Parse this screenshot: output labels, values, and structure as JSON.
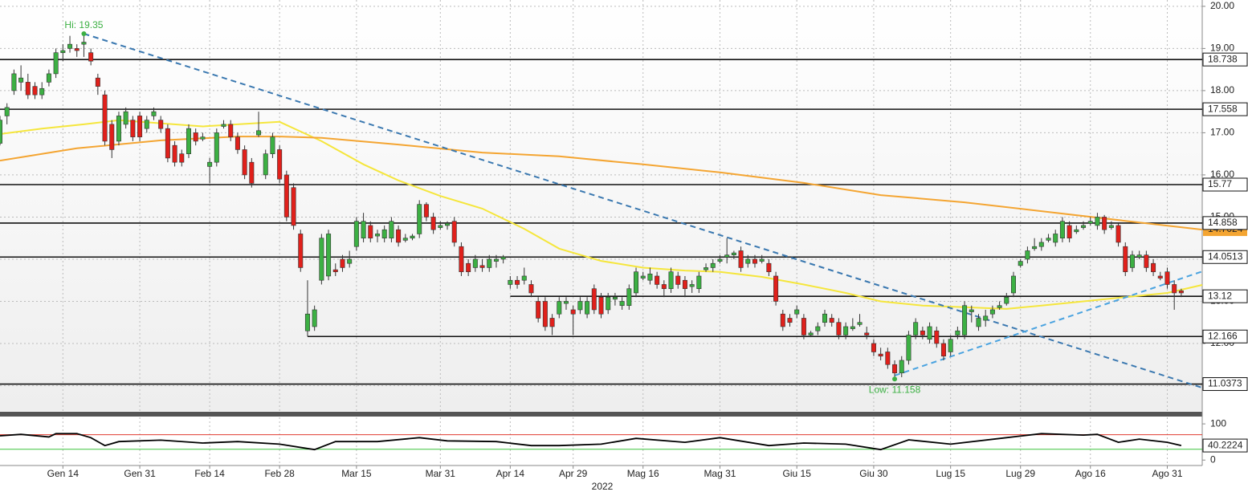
{
  "chart_data": {
    "type": "candlestick",
    "xlim": [
      0,
      172
    ],
    "xticks": [
      {
        "value": 9,
        "label": "Gen 14"
      },
      {
        "value": 20,
        "label": "Gen 31"
      },
      {
        "value": 30,
        "label": "Feb 14"
      },
      {
        "value": 40,
        "label": "Feb 28"
      },
      {
        "value": 51,
        "label": "Mar 15"
      },
      {
        "value": 63,
        "label": "Mar 31"
      },
      {
        "value": 73,
        "label": "Apr 14"
      },
      {
        "value": 82,
        "label": "Apr 29"
      },
      {
        "value": 92,
        "label": "Mag 16"
      },
      {
        "value": 103,
        "label": "Mag 31"
      },
      {
        "value": 114,
        "label": "Giu 15"
      },
      {
        "value": 125,
        "label": "Giu 30"
      },
      {
        "value": 136,
        "label": "Lug 15"
      },
      {
        "value": 146,
        "label": "Lug 29"
      },
      {
        "value": 156,
        "label": "Ago 16"
      },
      {
        "value": 167,
        "label": "Ago 31"
      }
    ],
    "x_axis_year": "2022",
    "ylim": [
      10.4,
      20.15
    ],
    "yticks": [
      {
        "value": 11,
        "label": "11.00"
      },
      {
        "value": 12,
        "label": "12.00"
      },
      {
        "value": 13,
        "label": "13.00"
      },
      {
        "value": 14,
        "label": "14.00"
      },
      {
        "value": 15,
        "label": "15.00"
      },
      {
        "value": 16,
        "label": "16.00"
      },
      {
        "value": 17,
        "label": "17.00"
      },
      {
        "value": 18,
        "label": "18.00"
      },
      {
        "value": 19,
        "label": "19.00"
      },
      {
        "value": 20,
        "label": "20.00"
      }
    ],
    "grid": true,
    "up_color": "#3cb043",
    "down_color": "#e0201b",
    "ohlc": [
      [
        16.75,
        17.4,
        16.7,
        17.3
      ],
      [
        17.4,
        17.7,
        17.2,
        17.6
      ],
      [
        18.0,
        18.5,
        17.9,
        18.4
      ],
      [
        18.2,
        18.6,
        18.0,
        18.3
      ],
      [
        18.2,
        18.4,
        17.8,
        17.9
      ],
      [
        18.1,
        18.2,
        17.8,
        17.9
      ],
      [
        17.9,
        18.2,
        17.8,
        18.05
      ],
      [
        18.2,
        18.5,
        18.1,
        18.4
      ],
      [
        18.4,
        19.0,
        18.3,
        18.9
      ],
      [
        18.9,
        19.1,
        18.7,
        18.95
      ],
      [
        19.0,
        19.3,
        18.9,
        19.1
      ],
      [
        19.0,
        19.1,
        18.8,
        18.95
      ],
      [
        19.1,
        19.35,
        18.8,
        19.15
      ],
      [
        18.9,
        19.0,
        18.6,
        18.7
      ],
      [
        18.3,
        18.4,
        17.9,
        18.1
      ],
      [
        17.9,
        18.0,
        16.7,
        16.8
      ],
      [
        17.2,
        17.3,
        16.4,
        16.6
      ],
      [
        16.8,
        17.5,
        16.7,
        17.4
      ],
      [
        17.2,
        17.6,
        17.1,
        17.5
      ],
      [
        17.3,
        17.4,
        16.8,
        16.9
      ],
      [
        17.4,
        17.5,
        16.8,
        16.9
      ],
      [
        17.1,
        17.4,
        17.0,
        17.3
      ],
      [
        17.4,
        17.6,
        17.3,
        17.5
      ],
      [
        17.3,
        17.4,
        17.0,
        17.1
      ],
      [
        17.1,
        17.2,
        16.3,
        16.4
      ],
      [
        16.7,
        16.8,
        16.2,
        16.3
      ],
      [
        16.5,
        16.6,
        16.2,
        16.3
      ],
      [
        16.5,
        17.2,
        16.4,
        17.1
      ],
      [
        17.0,
        17.1,
        16.7,
        16.8
      ],
      [
        16.85,
        17.0,
        16.8,
        16.9
      ],
      [
        16.2,
        16.4,
        15.8,
        16.3
      ],
      [
        16.3,
        17.1,
        16.2,
        17.0
      ],
      [
        17.15,
        17.3,
        17.1,
        17.2
      ],
      [
        17.2,
        17.3,
        16.8,
        16.9
      ],
      [
        16.9,
        17.0,
        16.5,
        16.6
      ],
      [
        16.6,
        16.7,
        15.9,
        16.0
      ],
      [
        16.3,
        16.4,
        15.7,
        15.8
      ],
      [
        16.95,
        17.5,
        16.9,
        17.05
      ],
      [
        16.0,
        16.6,
        15.9,
        16.5
      ],
      [
        16.5,
        17.0,
        16.4,
        16.9
      ],
      [
        16.6,
        16.7,
        15.8,
        15.9
      ],
      [
        16.0,
        16.1,
        14.9,
        15.0
      ],
      [
        15.7,
        15.8,
        14.7,
        14.8
      ],
      [
        14.6,
        14.7,
        13.7,
        13.8
      ],
      [
        12.3,
        13.5,
        12.17,
        12.7
      ],
      [
        12.4,
        12.9,
        12.3,
        12.8
      ],
      [
        13.5,
        14.6,
        13.4,
        14.5
      ],
      [
        13.6,
        14.7,
        13.5,
        14.6
      ],
      [
        13.75,
        13.9,
        13.6,
        13.7
      ],
      [
        14.0,
        14.1,
        13.7,
        13.8
      ],
      [
        13.9,
        14.2,
        13.8,
        14.0
      ],
      [
        14.3,
        15.0,
        14.2,
        14.9
      ],
      [
        14.5,
        15.1,
        14.4,
        14.9
      ],
      [
        14.8,
        14.9,
        14.4,
        14.5
      ],
      [
        14.55,
        14.7,
        14.4,
        14.6
      ],
      [
        14.5,
        14.8,
        14.4,
        14.7
      ],
      [
        14.5,
        15.0,
        14.4,
        14.9
      ],
      [
        14.7,
        14.8,
        14.3,
        14.4
      ],
      [
        14.45,
        14.6,
        14.4,
        14.5
      ],
      [
        14.5,
        14.6,
        14.45,
        14.55
      ],
      [
        14.6,
        15.4,
        14.5,
        15.3
      ],
      [
        15.3,
        15.35,
        14.9,
        15.0
      ],
      [
        15.0,
        15.1,
        14.6,
        14.7
      ],
      [
        14.75,
        14.9,
        14.7,
        14.8
      ],
      [
        14.8,
        14.9,
        14.7,
        14.85
      ],
      [
        14.9,
        15.0,
        14.3,
        14.4
      ],
      [
        14.3,
        14.4,
        13.6,
        13.7
      ],
      [
        13.9,
        14.0,
        13.6,
        13.7
      ],
      [
        13.8,
        14.1,
        13.7,
        14.0
      ],
      [
        13.85,
        14.0,
        13.7,
        13.8
      ],
      [
        13.8,
        14.1,
        13.7,
        14.0
      ],
      [
        13.95,
        14.1,
        13.8,
        14.0
      ],
      [
        14.0,
        14.1,
        13.9,
        14.05
      ],
      [
        13.4,
        13.6,
        13.3,
        13.5
      ],
      [
        13.5,
        13.6,
        13.3,
        13.4
      ],
      [
        13.5,
        13.8,
        13.4,
        13.6
      ],
      [
        13.4,
        13.5,
        13.1,
        13.2
      ],
      [
        13.0,
        13.1,
        12.5,
        12.6
      ],
      [
        13.0,
        13.1,
        12.3,
        12.4
      ],
      [
        12.6,
        12.7,
        12.2,
        12.4
      ],
      [
        12.7,
        13.1,
        12.6,
        13.0
      ],
      [
        12.95,
        13.1,
        12.8,
        13.0
      ],
      [
        12.8,
        12.9,
        12.2,
        12.7
      ],
      [
        12.8,
        13.1,
        12.7,
        13.0
      ],
      [
        12.7,
        13.1,
        12.6,
        13.0
      ],
      [
        13.3,
        13.4,
        12.7,
        12.8
      ],
      [
        13.1,
        13.2,
        12.6,
        12.7
      ],
      [
        12.8,
        13.2,
        12.7,
        13.1
      ],
      [
        13.05,
        13.2,
        12.9,
        13.1
      ],
      [
        12.9,
        13.1,
        12.8,
        13.0
      ],
      [
        12.9,
        13.4,
        12.8,
        13.3
      ],
      [
        13.2,
        13.8,
        13.1,
        13.7
      ],
      [
        13.55,
        13.7,
        13.5,
        13.6
      ],
      [
        13.5,
        13.8,
        13.4,
        13.65
      ],
      [
        13.6,
        13.7,
        13.3,
        13.4
      ],
      [
        13.4,
        13.5,
        13.1,
        13.3
      ],
      [
        13.3,
        13.8,
        13.2,
        13.7
      ],
      [
        13.6,
        13.7,
        13.3,
        13.4
      ],
      [
        13.5,
        13.6,
        13.1,
        13.3
      ],
      [
        13.35,
        13.5,
        13.2,
        13.4
      ],
      [
        13.3,
        13.7,
        13.2,
        13.6
      ],
      [
        13.75,
        13.9,
        13.7,
        13.8
      ],
      [
        13.8,
        14.0,
        13.7,
        13.9
      ],
      [
        13.95,
        14.1,
        13.9,
        14.0
      ],
      [
        14.05,
        14.5,
        13.9,
        14.1
      ],
      [
        14.1,
        14.2,
        14.0,
        14.15
      ],
      [
        14.2,
        14.3,
        13.7,
        13.8
      ],
      [
        13.9,
        14.1,
        13.8,
        14.0
      ],
      [
        14.0,
        14.1,
        13.8,
        13.9
      ],
      [
        13.95,
        14.1,
        13.9,
        14.0
      ],
      [
        13.9,
        14.0,
        13.6,
        13.7
      ],
      [
        13.6,
        13.7,
        12.9,
        13.0
      ],
      [
        12.7,
        12.8,
        12.3,
        12.4
      ],
      [
        12.6,
        12.7,
        12.4,
        12.5
      ],
      [
        12.7,
        12.9,
        12.6,
        12.8
      ],
      [
        12.6,
        12.7,
        12.1,
        12.2
      ],
      [
        12.2,
        12.3,
        12.15,
        12.25
      ],
      [
        12.3,
        12.5,
        12.2,
        12.4
      ],
      [
        12.5,
        12.8,
        12.4,
        12.7
      ],
      [
        12.6,
        12.7,
        12.4,
        12.5
      ],
      [
        12.5,
        12.6,
        12.1,
        12.2
      ],
      [
        12.2,
        12.5,
        12.1,
        12.4
      ],
      [
        12.35,
        12.6,
        12.3,
        12.4
      ],
      [
        12.45,
        12.7,
        12.4,
        12.5
      ],
      [
        12.25,
        12.4,
        12.1,
        12.2
      ],
      [
        12.0,
        12.1,
        11.7,
        11.8
      ],
      [
        11.75,
        11.9,
        11.6,
        11.7
      ],
      [
        11.8,
        11.9,
        11.4,
        11.5
      ],
      [
        11.5,
        11.6,
        11.16,
        11.3
      ],
      [
        11.3,
        11.7,
        11.2,
        11.6
      ],
      [
        11.6,
        12.3,
        11.5,
        12.2
      ],
      [
        12.2,
        12.6,
        12.1,
        12.5
      ],
      [
        12.3,
        12.4,
        12.1,
        12.2
      ],
      [
        12.1,
        12.5,
        12.0,
        12.4
      ],
      [
        12.3,
        12.4,
        11.9,
        12.0
      ],
      [
        12.0,
        12.1,
        11.6,
        11.7
      ],
      [
        11.8,
        12.2,
        11.7,
        12.1
      ],
      [
        12.2,
        12.4,
        12.1,
        12.3
      ],
      [
        12.2,
        13.0,
        12.1,
        12.9
      ],
      [
        12.75,
        12.9,
        12.5,
        12.8
      ],
      [
        12.4,
        12.7,
        12.3,
        12.6
      ],
      [
        12.55,
        12.8,
        12.4,
        12.65
      ],
      [
        12.7,
        12.9,
        12.6,
        12.8
      ],
      [
        12.85,
        13.0,
        12.8,
        12.9
      ],
      [
        12.95,
        13.2,
        12.9,
        13.1
      ],
      [
        13.2,
        13.7,
        13.1,
        13.6
      ],
      [
        13.85,
        14.0,
        13.8,
        13.95
      ],
      [
        14.0,
        14.3,
        13.9,
        14.2
      ],
      [
        14.25,
        14.5,
        14.2,
        14.3
      ],
      [
        14.3,
        14.5,
        14.2,
        14.4
      ],
      [
        14.45,
        14.6,
        14.4,
        14.5
      ],
      [
        14.4,
        14.7,
        14.3,
        14.6
      ],
      [
        14.5,
        15.0,
        14.4,
        14.9
      ],
      [
        14.8,
        14.9,
        14.4,
        14.5
      ],
      [
        14.65,
        14.8,
        14.6,
        14.7
      ],
      [
        14.75,
        14.9,
        14.7,
        14.8
      ],
      [
        14.85,
        15.0,
        14.8,
        14.9
      ],
      [
        14.8,
        15.1,
        14.7,
        15.0
      ],
      [
        15.0,
        15.05,
        14.6,
        14.7
      ],
      [
        14.75,
        14.9,
        14.7,
        14.8
      ],
      [
        14.8,
        14.85,
        14.3,
        14.4
      ],
      [
        14.3,
        14.4,
        13.6,
        13.7
      ],
      [
        13.8,
        14.2,
        13.7,
        14.1
      ],
      [
        14.05,
        14.2,
        14.0,
        14.1
      ],
      [
        14.1,
        14.2,
        13.7,
        13.8
      ],
      [
        13.9,
        14.0,
        13.6,
        13.7
      ],
      [
        13.6,
        13.7,
        13.5,
        13.55
      ],
      [
        13.7,
        13.8,
        13.3,
        13.4
      ],
      [
        13.4,
        13.5,
        12.8,
        13.2
      ],
      [
        13.25,
        13.3,
        13.1,
        13.2
      ]
    ],
    "moving_averages": [
      {
        "color": "#f5e63c",
        "x": [
          0,
          6,
          12,
          17,
          29,
          34,
          40,
          46,
          52,
          57,
          63,
          69,
          75,
          80,
          86,
          92,
          98,
          103,
          109,
          115,
          121,
          126,
          132,
          138,
          144,
          149,
          155,
          161,
          167,
          172
        ],
        "values": [
          16.97,
          17.1,
          17.2,
          17.3,
          17.15,
          17.2,
          17.26,
          16.8,
          16.25,
          15.87,
          15.5,
          15.2,
          14.72,
          14.25,
          13.96,
          13.8,
          13.73,
          13.7,
          13.58,
          13.4,
          13.2,
          13.0,
          12.9,
          12.86,
          12.82,
          12.9,
          13.0,
          13.1,
          13.2,
          13.39
        ]
      },
      {
        "color": "#f4a532",
        "x": [
          0,
          11,
          23,
          34,
          40,
          46,
          57,
          69,
          80,
          92,
          103,
          115,
          126,
          138,
          149,
          161,
          172
        ],
        "values": [
          16.34,
          16.63,
          16.82,
          16.91,
          16.91,
          16.88,
          16.72,
          16.53,
          16.44,
          16.25,
          16.06,
          15.81,
          15.52,
          15.35,
          15.14,
          14.91,
          14.7024
        ],
        "label_last": true
      }
    ],
    "trendlines": [
      {
        "color": "#3a78b0",
        "x": [
          12,
          172
        ],
        "values": [
          19.35,
          10.95
        ]
      },
      {
        "color": "#4aa3e0",
        "x": [
          128,
          172
        ],
        "values": [
          11.24,
          13.71
        ]
      }
    ],
    "levels": [
      {
        "value": 18.738,
        "from": 0
      },
      {
        "value": 17.558,
        "from": 0
      },
      {
        "value": 15.77,
        "from": 0
      },
      {
        "value": 14.858,
        "from": 0
      },
      {
        "value": 14.0513,
        "from": 0
      },
      {
        "value": 13.12,
        "from": 73
      },
      {
        "value": 12.166,
        "from": 44
      },
      {
        "value": 11.0373,
        "from": 0
      }
    ],
    "annotations": [
      {
        "text": "Hi: 19.35",
        "x": 12,
        "y": 19.35,
        "position": "above"
      },
      {
        "text": "Low: 11.158",
        "x": 128,
        "y": 11.158,
        "position": "below"
      }
    ],
    "annotation_color": "#3cb043",
    "indicator": {
      "ylim": [
        -15,
        118
      ],
      "yticks": [
        0,
        100
      ],
      "color": "#000000",
      "upper": 70,
      "upper_color": "#e03c31",
      "lower": 30,
      "lower_color": "#3cc43c",
      "x": [
        0,
        3,
        7,
        8,
        11,
        13,
        15,
        17,
        23,
        29,
        34,
        40,
        45,
        48,
        54,
        60,
        64,
        71,
        76,
        80,
        86,
        91,
        98,
        103,
        110,
        115,
        121,
        126,
        130,
        136,
        144,
        149,
        155,
        157,
        160,
        163,
        167,
        169
      ],
      "values": [
        67,
        71,
        64,
        73,
        73,
        62,
        40,
        51,
        55,
        47,
        51,
        44,
        29,
        51,
        51,
        62,
        53,
        51,
        40,
        40,
        44,
        60,
        49,
        62,
        40,
        47,
        44,
        29,
        56,
        44,
        62,
        73,
        69,
        71,
        49,
        58,
        49,
        40.2224
      ]
    }
  }
}
